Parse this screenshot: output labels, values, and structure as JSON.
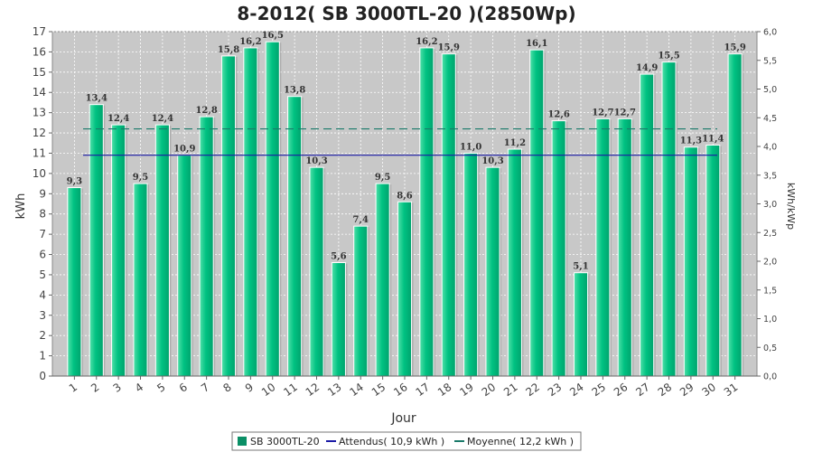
{
  "chart_data": {
    "type": "bar",
    "title": "8-2012( SB 3000TL-20 )(2850Wp)",
    "xlabel": "Jour",
    "ylabel": "kWh",
    "y2label": "kWh/kWp",
    "categories": [
      "1",
      "2",
      "3",
      "4",
      "5",
      "6",
      "7",
      "8",
      "9",
      "10",
      "11",
      "12",
      "13",
      "14",
      "15",
      "16",
      "17",
      "18",
      "19",
      "20",
      "21",
      "22",
      "23",
      "24",
      "25",
      "26",
      "27",
      "28",
      "29",
      "30",
      "31"
    ],
    "series": [
      {
        "name": "SB 3000TL-20",
        "values": [
          9.3,
          13.4,
          12.4,
          9.5,
          12.4,
          10.9,
          12.8,
          15.8,
          16.2,
          16.5,
          13.8,
          10.3,
          5.6,
          7.4,
          9.5,
          8.6,
          16.2,
          15.9,
          11.0,
          10.3,
          11.2,
          16.1,
          12.6,
          5.1,
          12.7,
          12.7,
          14.9,
          15.5,
          11.3,
          11.4,
          15.9
        ],
        "labels": [
          "9,3",
          "13,4",
          "12,4",
          "9,5",
          "12,4",
          "10,9",
          "12,8",
          "15,8",
          "16,2",
          "16,5",
          "13,8",
          "10,3",
          "5,6",
          "7,4",
          "9,5",
          "8,6",
          "16,2",
          "15,9",
          "11,0",
          "10,3",
          "11,2",
          "16,1",
          "12,6",
          "5,1",
          "12,7",
          "12,7",
          "14,9",
          "15,5",
          "11,3",
          "11,4",
          "15,9"
        ],
        "color": "#00b77a"
      }
    ],
    "reference_lines": [
      {
        "name": "Attendus( 10,9 kWh )",
        "value": 10.9,
        "color": "#1a1aa6",
        "style": "solid"
      },
      {
        "name": "Moyenne( 12,2 kWh )",
        "value": 12.2,
        "color": "#1a7a6a",
        "style": "dashed"
      }
    ],
    "ylim": [
      0,
      17
    ],
    "yticks": [
      "0",
      "1",
      "2",
      "3",
      "4",
      "5",
      "6",
      "7",
      "8",
      "9",
      "10",
      "11",
      "12",
      "13",
      "14",
      "15",
      "16",
      "17"
    ],
    "y2lim": [
      0,
      6.0
    ],
    "y2ticks": [
      "0,0",
      "0,5",
      "1,0",
      "1,5",
      "2,0",
      "2,5",
      "3,0",
      "3,5",
      "4,0",
      "4,5",
      "5,0",
      "5,5",
      "6,0"
    ],
    "grid": true,
    "legend_position": "bottom",
    "colors": {
      "plot_bg": "#c8c8c8",
      "bar": "#00b77a",
      "legend_bar": "#0a8f66"
    }
  }
}
